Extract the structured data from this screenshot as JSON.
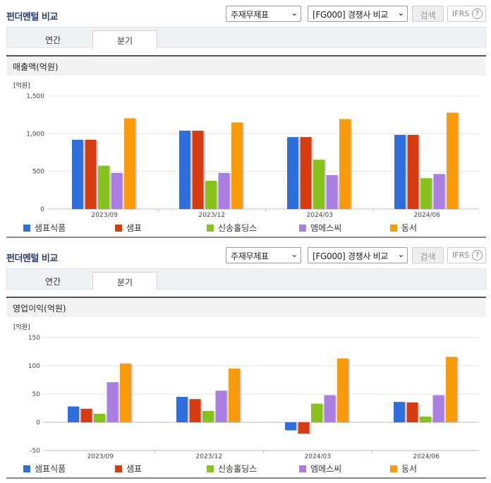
{
  "sections": [
    {
      "title": "펀더멘털 비교",
      "select1": "주재무제표",
      "select2": "[FG000] 경쟁사 비교",
      "search_btn": "검색",
      "ifrs_label": "IFRS",
      "ifrs_help": "?",
      "tabs": [
        "연간",
        "분기"
      ],
      "active_tab": "분기",
      "metric_title": "매출액(억원)",
      "chart_data": {
        "type": "bar",
        "unit_label": "[억원]",
        "categories": [
          "2023/09",
          "2023/12",
          "2024/03",
          "2024/06"
        ],
        "ylim": [
          0,
          1500
        ],
        "yticks": [
          0,
          500,
          1000,
          1500
        ],
        "ytick_labels": [
          "0",
          "500",
          "1,000",
          "1,500"
        ],
        "grid": true,
        "legend_position": "bottom",
        "series": [
          {
            "name": "샘표식품",
            "color": "#2e6fdc",
            "values": [
              920,
              1040,
              955,
              985
            ]
          },
          {
            "name": "샘표",
            "color": "#d63b12",
            "values": [
              920,
              1040,
              955,
              985
            ]
          },
          {
            "name": "신송홀딩스",
            "color": "#88c21c",
            "values": [
              575,
              375,
              655,
              410
            ]
          },
          {
            "name": "엠에스씨",
            "color": "#a97ee0",
            "values": [
              480,
              480,
              450,
              465
            ]
          },
          {
            "name": "동서",
            "color": "#f99a0a",
            "values": [
              1205,
              1150,
              1195,
              1280
            ]
          }
        ]
      }
    },
    {
      "title": "펀더멘털 비교",
      "select1": "주재무제표",
      "select2": "[FG000] 경쟁사 비교",
      "search_btn": "검색",
      "ifrs_label": "IFRS",
      "ifrs_help": "?",
      "tabs": [
        "연간",
        "분기"
      ],
      "active_tab": "분기",
      "metric_title": "영업이익(억원)",
      "chart_data": {
        "type": "bar",
        "unit_label": "[억원]",
        "categories": [
          "2023/09",
          "2023/12",
          "2024/03",
          "2024/06"
        ],
        "ylim": [
          -50,
          150
        ],
        "yticks": [
          -50,
          0,
          50,
          100,
          150
        ],
        "ytick_labels": [
          "-50",
          "0",
          "50",
          "100",
          "150"
        ],
        "grid": true,
        "legend_position": "bottom",
        "series": [
          {
            "name": "샘표식품",
            "color": "#2e6fdc",
            "values": [
              28,
              45,
              -14,
              36
            ]
          },
          {
            "name": "샘표",
            "color": "#d63b12",
            "values": [
              24,
              41,
              -20,
              35
            ]
          },
          {
            "name": "신송홀딩스",
            "color": "#88c21c",
            "values": [
              15,
              20,
              33,
              10
            ]
          },
          {
            "name": "엠에스씨",
            "color": "#a97ee0",
            "values": [
              71,
              56,
              48,
              48
            ]
          },
          {
            "name": "동서",
            "color": "#f99a0a",
            "values": [
              104,
              95,
              113,
              116
            ]
          }
        ]
      }
    }
  ]
}
